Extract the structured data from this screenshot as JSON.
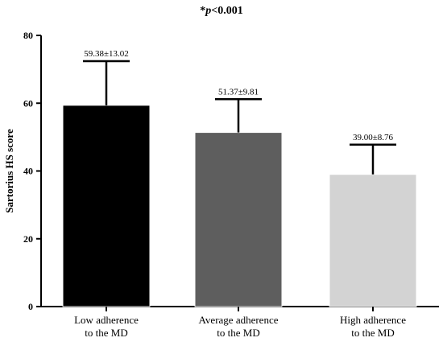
{
  "chart_data": {
    "type": "bar",
    "title_parts": [
      "*",
      "p",
      "<0.001"
    ],
    "ylabel": "Sartorius HS score",
    "xlabel": "",
    "ylim": [
      0,
      80
    ],
    "yticks": [
      0,
      20,
      40,
      60,
      80
    ],
    "categories": [
      [
        "Low adherence",
        "to the MD"
      ],
      [
        "Average adherence",
        "to the MD"
      ],
      [
        "High adherence",
        "to the MD"
      ]
    ],
    "values": [
      59.38,
      51.37,
      39.0
    ],
    "errors": [
      13.02,
      9.81,
      8.76
    ],
    "data_labels": [
      "59.38±13.02",
      "51.37±9.81",
      "39.00±8.76"
    ],
    "colors": [
      "#000000",
      "#5e5e5e",
      "#d3d3d3"
    ],
    "grid": false,
    "legend": "none"
  }
}
